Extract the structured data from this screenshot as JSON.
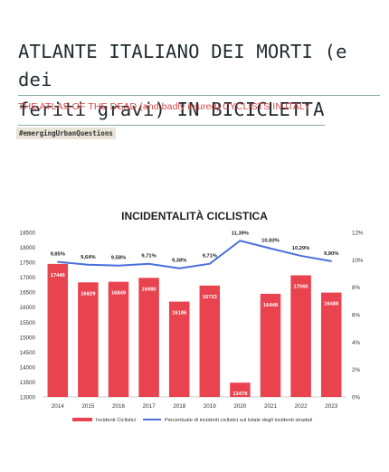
{
  "header": {
    "title_line1": "ATLANTE ITALIANO DEI MORTI (e dei",
    "title_line2": "feriti gravi) IN BICICLETTA",
    "subtitle": "THE ATLAS OF THE DEAD (and badly injured) CYCLISTS IN ITALY",
    "tag": "#emergingUrbanQuestions"
  },
  "colors": {
    "bar": "#e8434f",
    "line": "#4a6fdc",
    "subtitle": "#d64545"
  },
  "chart_data": {
    "type": "bar",
    "title": "INCIDENTALITÀ CICLISTICA",
    "categories": [
      "2014",
      "2015",
      "2016",
      "2017",
      "2018",
      "2019",
      "2020",
      "2021",
      "2022",
      "2023"
    ],
    "series": [
      {
        "name": "Incidenti Ciclistici",
        "type": "bar",
        "axis": "left",
        "values": [
          17446,
          16829,
          16849,
          16980,
          16186,
          16723,
          13478,
          16448,
          17065,
          16488
        ],
        "labels": [
          "17446",
          "16829",
          "16849",
          "16980",
          "16186",
          "16723",
          "13478",
          "16448",
          "17065",
          "16488"
        ]
      },
      {
        "name": "Percentuale di incidenti ciclistici sul totale degli incidenti stradali",
        "type": "line",
        "axis": "right",
        "values": [
          9.85,
          9.64,
          9.58,
          9.71,
          9.38,
          9.71,
          11.39,
          10.83,
          10.29,
          9.9
        ],
        "labels": [
          "9,85%",
          "9,64%",
          "9,58%",
          "9,71%",
          "9,38%",
          "9,71%",
          "11,39%",
          "10,83%",
          "10,29%",
          "9,90%"
        ]
      }
    ],
    "ylim_left": [
      13000,
      18500
    ],
    "yticks_left": [
      "13000",
      "13500",
      "14000",
      "14500",
      "15000",
      "15500",
      "16000",
      "16500",
      "17000",
      "17500",
      "18000",
      "18500"
    ],
    "ylim_right": [
      0,
      12
    ],
    "yticks_right": [
      "0%",
      "2%",
      "4%",
      "6%",
      "8%",
      "10%",
      "12%"
    ],
    "grid": false,
    "legend": "bottom"
  }
}
